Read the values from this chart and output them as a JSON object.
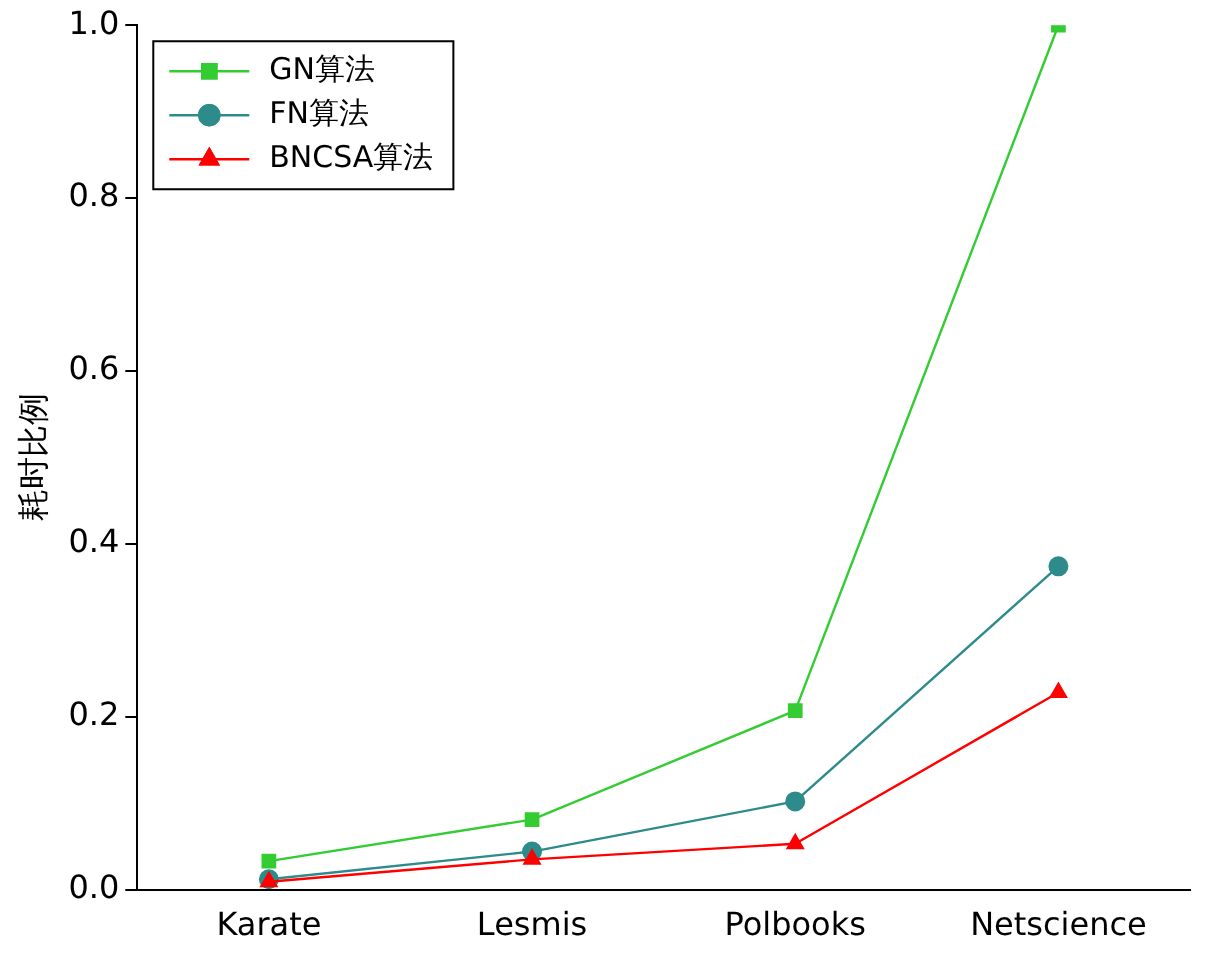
{
  "chart_data": {
    "type": "line",
    "ylabel": "耗时比例",
    "categories": [
      "Karate",
      "Lesmis",
      "Polbooks",
      "Netscience"
    ],
    "series": [
      {
        "name": "GN算法",
        "color": "#33cc33",
        "values": [
          0.033,
          0.081,
          0.207,
          1.0
        ],
        "marker": "square"
      },
      {
        "name": "FN算法",
        "color": "#2e8b8b",
        "values": [
          0.012,
          0.044,
          0.102,
          0.374
        ],
        "marker": "circle"
      },
      {
        "name": "BNCSA算法",
        "color": "#ff0000",
        "values": [
          0.009,
          0.035,
          0.053,
          0.228
        ],
        "marker": "triangle"
      }
    ],
    "ylim": [
      0,
      1.0
    ],
    "yticks": [
      {
        "value": 0,
        "label": "0.0"
      },
      {
        "value": 0.2,
        "label": "0.2"
      },
      {
        "value": 0.4,
        "label": "0.4"
      },
      {
        "value": 0.6,
        "label": "0.6"
      },
      {
        "value": 0.8,
        "label": "0.8"
      },
      {
        "value": 1.0,
        "label": "1.0"
      }
    ],
    "grid": false,
    "legend": "top left",
    "line_style": "solid"
  }
}
